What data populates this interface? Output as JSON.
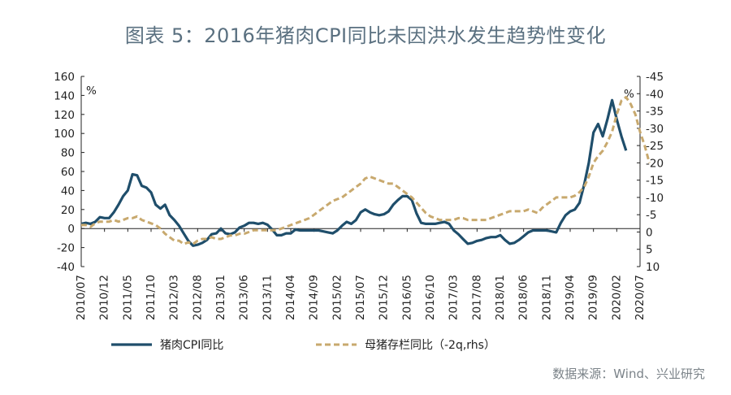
{
  "title": "图表 5：2016年猪肉CPI同比未因洪水发生趋势性变化",
  "source": "数据来源：Wind、兴业研究",
  "colors": {
    "pork": "#1f4e6b",
    "sow": "#c8a96e",
    "title": "#5a7080",
    "axis": "#222222"
  },
  "chart_data": {
    "type": "line",
    "left_unit": "%",
    "right_unit": "%",
    "ylim": [
      -40,
      160
    ],
    "yticks": [
      -40,
      -20,
      0,
      20,
      40,
      60,
      80,
      100,
      120,
      140,
      160
    ],
    "ylim_right": [
      10,
      -45
    ],
    "yticks_right": [
      -45,
      -40,
      -35,
      -30,
      -25,
      -20,
      -15,
      -10,
      -5,
      0,
      5,
      10
    ],
    "x_range": [
      "2010/07",
      "2020/07"
    ],
    "xticks": [
      "2010/07",
      "2010/12",
      "2011/05",
      "2011/10",
      "2012/03",
      "2012/08",
      "2013/01",
      "2013/06",
      "2013/11",
      "2014/04",
      "2014/09",
      "2015/02",
      "2015/07",
      "2015/12",
      "2016/05",
      "2016/10",
      "2017/03",
      "2017/08",
      "2018/01",
      "2018/06",
      "2018/11",
      "2019/04",
      "2019/09",
      "2020/02",
      "2020/07"
    ],
    "series": [
      {
        "name": "猪肉CPI同比",
        "axis": "left",
        "style": "solid",
        "points": [
          [
            "2010/07",
            5
          ],
          [
            "2010/08",
            6
          ],
          [
            "2010/09",
            5
          ],
          [
            "2010/10",
            7
          ],
          [
            "2010/11",
            12
          ],
          [
            "2010/12",
            11
          ],
          [
            "2011/01",
            11
          ],
          [
            "2011/02",
            17
          ],
          [
            "2011/03",
            25
          ],
          [
            "2011/04",
            34
          ],
          [
            "2011/05",
            40
          ],
          [
            "2011/06",
            57
          ],
          [
            "2011/07",
            56
          ],
          [
            "2011/08",
            45
          ],
          [
            "2011/09",
            43
          ],
          [
            "2011/10",
            38
          ],
          [
            "2011/11",
            25
          ],
          [
            "2011/12",
            21
          ],
          [
            "2012/01",
            25
          ],
          [
            "2012/02",
            14
          ],
          [
            "2012/03",
            9
          ],
          [
            "2012/04",
            3
          ],
          [
            "2012/05",
            -5
          ],
          [
            "2012/06",
            -13
          ],
          [
            "2012/07",
            -18
          ],
          [
            "2012/08",
            -17
          ],
          [
            "2012/09",
            -15
          ],
          [
            "2012/10",
            -12
          ],
          [
            "2012/11",
            -6
          ],
          [
            "2012/12",
            -5
          ],
          [
            "2013/01",
            0
          ],
          [
            "2013/02",
            -5
          ],
          [
            "2013/03",
            -6
          ],
          [
            "2013/04",
            -4
          ],
          [
            "2013/05",
            1
          ],
          [
            "2013/06",
            3
          ],
          [
            "2013/07",
            6
          ],
          [
            "2013/08",
            6
          ],
          [
            "2013/09",
            5
          ],
          [
            "2013/10",
            6
          ],
          [
            "2013/11",
            4
          ],
          [
            "2013/12",
            -1
          ],
          [
            "2014/01",
            -7
          ],
          [
            "2014/02",
            -7
          ],
          [
            "2014/03",
            -5
          ],
          [
            "2014/04",
            -5
          ],
          [
            "2014/05",
            -1
          ],
          [
            "2014/06",
            -2
          ],
          [
            "2014/07",
            -2
          ],
          [
            "2014/08",
            -2
          ],
          [
            "2014/09",
            -2
          ],
          [
            "2014/10",
            -2
          ],
          [
            "2014/11",
            -3
          ],
          [
            "2014/12",
            -4
          ],
          [
            "2015/01",
            -5
          ],
          [
            "2015/02",
            -2
          ],
          [
            "2015/03",
            3
          ],
          [
            "2015/04",
            7
          ],
          [
            "2015/05",
            5
          ],
          [
            "2015/06",
            9
          ],
          [
            "2015/07",
            17
          ],
          [
            "2015/08",
            20
          ],
          [
            "2015/09",
            17
          ],
          [
            "2015/10",
            15
          ],
          [
            "2015/11",
            14
          ],
          [
            "2015/12",
            15
          ],
          [
            "2016/01",
            18
          ],
          [
            "2016/02",
            25
          ],
          [
            "2016/03",
            30
          ],
          [
            "2016/04",
            34
          ],
          [
            "2016/05",
            34
          ],
          [
            "2016/06",
            30
          ],
          [
            "2016/07",
            16
          ],
          [
            "2016/08",
            6
          ],
          [
            "2016/09",
            5
          ],
          [
            "2016/10",
            5
          ],
          [
            "2016/11",
            5
          ],
          [
            "2016/12",
            6
          ],
          [
            "2017/01",
            7
          ],
          [
            "2017/02",
            5
          ],
          [
            "2017/03",
            -2
          ],
          [
            "2017/04",
            -6
          ],
          [
            "2017/05",
            -11
          ],
          [
            "2017/06",
            -16
          ],
          [
            "2017/07",
            -15
          ],
          [
            "2017/08",
            -13
          ],
          [
            "2017/09",
            -12
          ],
          [
            "2017/10",
            -10
          ],
          [
            "2017/11",
            -9
          ],
          [
            "2017/12",
            -9
          ],
          [
            "2018/01",
            -7
          ],
          [
            "2018/02",
            -12
          ],
          [
            "2018/03",
            -16
          ],
          [
            "2018/04",
            -15
          ],
          [
            "2018/05",
            -12
          ],
          [
            "2018/06",
            -8
          ],
          [
            "2018/07",
            -4
          ],
          [
            "2018/08",
            -2
          ],
          [
            "2018/09",
            -2
          ],
          [
            "2018/10",
            -2
          ],
          [
            "2018/11",
            -2
          ],
          [
            "2018/12",
            -3
          ],
          [
            "2019/01",
            -4
          ],
          [
            "2019/02",
            6
          ],
          [
            "2019/03",
            14
          ],
          [
            "2019/04",
            18
          ],
          [
            "2019/05",
            20
          ],
          [
            "2019/06",
            27
          ],
          [
            "2019/07",
            46
          ],
          [
            "2019/08",
            69
          ],
          [
            "2019/09",
            101
          ],
          [
            "2019/10",
            110
          ],
          [
            "2019/11",
            97
          ],
          [
            "2019/12",
            115
          ],
          [
            "2020/01",
            135
          ],
          [
            "2020/02",
            115
          ],
          [
            "2020/03",
            97
          ],
          [
            "2020/04",
            82
          ]
        ]
      },
      {
        "name": "母猪存栏同比（-2q,rhs）",
        "axis": "right",
        "style": "dashed",
        "points": [
          [
            "2010/07",
            -2
          ],
          [
            "2010/08",
            -2
          ],
          [
            "2010/09",
            -1.5
          ],
          [
            "2010/10",
            -2.5
          ],
          [
            "2010/11",
            -3
          ],
          [
            "2010/12",
            -3
          ],
          [
            "2011/01",
            -3
          ],
          [
            "2011/02",
            -3.5
          ],
          [
            "2011/03",
            -3
          ],
          [
            "2011/04",
            -3.5
          ],
          [
            "2011/05",
            -4
          ],
          [
            "2011/06",
            -4
          ],
          [
            "2011/07",
            -4.5
          ],
          [
            "2011/08",
            -3.5
          ],
          [
            "2011/09",
            -3
          ],
          [
            "2011/10",
            -2.5
          ],
          [
            "2011/11",
            -2
          ],
          [
            "2011/12",
            -1
          ],
          [
            "2012/01",
            0.5
          ],
          [
            "2012/02",
            1.5
          ],
          [
            "2012/03",
            2.5
          ],
          [
            "2012/04",
            2.5
          ],
          [
            "2012/05",
            3.5
          ],
          [
            "2012/06",
            3
          ],
          [
            "2012/07",
            3.5
          ],
          [
            "2012/08",
            2.5
          ],
          [
            "2012/09",
            2
          ],
          [
            "2012/10",
            2
          ],
          [
            "2012/11",
            1.5
          ],
          [
            "2012/12",
            2
          ],
          [
            "2013/01",
            2
          ],
          [
            "2013/02",
            1.5
          ],
          [
            "2013/03",
            1
          ],
          [
            "2013/04",
            1
          ],
          [
            "2013/05",
            0.5
          ],
          [
            "2013/06",
            0.5
          ],
          [
            "2013/07",
            0
          ],
          [
            "2013/08",
            -0.5
          ],
          [
            "2013/09",
            -0.5
          ],
          [
            "2013/10",
            -0.5
          ],
          [
            "2013/11",
            -0.5
          ],
          [
            "2013/12",
            -0.5
          ],
          [
            "2014/01",
            -0.5
          ],
          [
            "2014/02",
            -1
          ],
          [
            "2014/03",
            -1.5
          ],
          [
            "2014/04",
            -2
          ],
          [
            "2014/05",
            -2.5
          ],
          [
            "2014/06",
            -3
          ],
          [
            "2014/07",
            -3.5
          ],
          [
            "2014/08",
            -4
          ],
          [
            "2014/09",
            -5
          ],
          [
            "2014/10",
            -6
          ],
          [
            "2014/11",
            -7
          ],
          [
            "2014/12",
            -8
          ],
          [
            "2015/01",
            -9
          ],
          [
            "2015/02",
            -9.5
          ],
          [
            "2015/03",
            -10
          ],
          [
            "2015/04",
            -11
          ],
          [
            "2015/05",
            -12
          ],
          [
            "2015/06",
            -13
          ],
          [
            "2015/07",
            -14
          ],
          [
            "2015/08",
            -15.5
          ],
          [
            "2015/09",
            -16
          ],
          [
            "2015/10",
            -15.5
          ],
          [
            "2015/11",
            -15
          ],
          [
            "2015/12",
            -14.5
          ],
          [
            "2016/01",
            -14
          ],
          [
            "2016/02",
            -14
          ],
          [
            "2016/03",
            -13
          ],
          [
            "2016/04",
            -12
          ],
          [
            "2016/05",
            -11
          ],
          [
            "2016/06",
            -10
          ],
          [
            "2016/07",
            -8.5
          ],
          [
            "2016/08",
            -7
          ],
          [
            "2016/09",
            -5.5
          ],
          [
            "2016/10",
            -4.5
          ],
          [
            "2016/11",
            -4
          ],
          [
            "2016/12",
            -3.5
          ],
          [
            "2017/01",
            -3.5
          ],
          [
            "2017/02",
            -3.5
          ],
          [
            "2017/03",
            -3.5
          ],
          [
            "2017/04",
            -4
          ],
          [
            "2017/05",
            -4
          ],
          [
            "2017/06",
            -3.5
          ],
          [
            "2017/07",
            -3.5
          ],
          [
            "2017/08",
            -3.5
          ],
          [
            "2017/09",
            -3.5
          ],
          [
            "2017/10",
            -3.5
          ],
          [
            "2017/11",
            -4
          ],
          [
            "2017/12",
            -4.5
          ],
          [
            "2018/01",
            -5
          ],
          [
            "2018/02",
            -5.5
          ],
          [
            "2018/03",
            -6
          ],
          [
            "2018/04",
            -6
          ],
          [
            "2018/05",
            -6
          ],
          [
            "2018/06",
            -6
          ],
          [
            "2018/07",
            -6.5
          ],
          [
            "2018/08",
            -6
          ],
          [
            "2018/09",
            -5.5
          ],
          [
            "2018/10",
            -7
          ],
          [
            "2018/11",
            -8
          ],
          [
            "2018/12",
            -9
          ],
          [
            "2019/01",
            -10
          ],
          [
            "2019/02",
            -10
          ],
          [
            "2019/03",
            -10
          ],
          [
            "2019/04",
            -10
          ],
          [
            "2019/05",
            -10.5
          ],
          [
            "2019/06",
            -11.5
          ],
          [
            "2019/07",
            -13
          ],
          [
            "2019/08",
            -16
          ],
          [
            "2019/09",
            -20
          ],
          [
            "2019/10",
            -22
          ],
          [
            "2019/11",
            -23.5
          ],
          [
            "2019/12",
            -26
          ],
          [
            "2020/01",
            -29
          ],
          [
            "2020/02",
            -34
          ],
          [
            "2020/03",
            -38
          ],
          [
            "2020/04",
            -39
          ],
          [
            "2020/05",
            -37
          ],
          [
            "2020/06",
            -34
          ],
          [
            "2020/07",
            -29
          ],
          [
            "2020/08",
            -25
          ],
          [
            "2020/09",
            -20
          ]
        ]
      }
    ],
    "legend": "bottom"
  }
}
